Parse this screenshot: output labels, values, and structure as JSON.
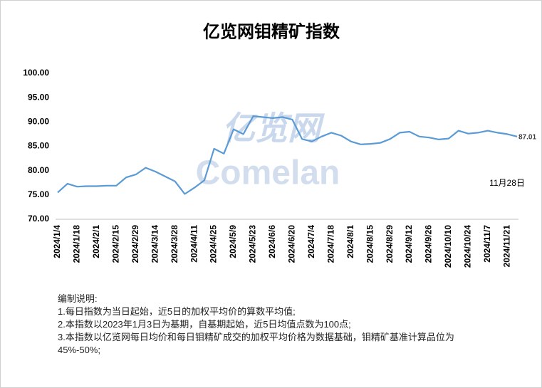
{
  "chart_data": {
    "type": "line",
    "title": "亿览网钼精矿指数",
    "categories": [
      "2024/1/4",
      null,
      "2024/1/18",
      null,
      "2024/2/1",
      null,
      "2024/2/15",
      null,
      "2024/2/29",
      null,
      "2024/3/14",
      null,
      "2024/3/28",
      null,
      "2024/4/11",
      null,
      "2024/4/25",
      null,
      "2024/5/9",
      null,
      "2024/5/23",
      null,
      "2024/6/6",
      null,
      "2024/6/20",
      null,
      "2024/7/4",
      null,
      "2024/7/18",
      null,
      "2024/8/1",
      null,
      "2024/8/15",
      null,
      "2024/8/29",
      null,
      "2024/9/12",
      null,
      "2024/9/26",
      null,
      "2024/10/10",
      null,
      "2024/10/24",
      null,
      "2024/11/7",
      null,
      "2024/11/21",
      null
    ],
    "series": [
      {
        "color": "#5b9bd5",
        "values": [
          75.5,
          77.3,
          76.7,
          76.8,
          76.8,
          76.9,
          76.9,
          78.6,
          79.2,
          80.6,
          79.8,
          78.8,
          77.8,
          75.2,
          76.5,
          78.0,
          84.5,
          83.5,
          88.5,
          87.5,
          91.2,
          91.0,
          90.8,
          91.0,
          90.5,
          86.5,
          86.0,
          87.0,
          87.8,
          87.2,
          86.0,
          85.4,
          85.5,
          85.7,
          86.5,
          87.8,
          88.0,
          87.0,
          86.8,
          86.4,
          86.6,
          88.2,
          87.6,
          87.8,
          88.2,
          87.8,
          87.5,
          87.01
        ]
      }
    ],
    "ylim": [
      70,
      100
    ],
    "yticks": [
      {
        "value": 70,
        "label": "70.00"
      },
      {
        "value": 75,
        "label": "75.00"
      },
      {
        "value": 80,
        "label": "80.00"
      },
      {
        "value": 85,
        "label": "85.00"
      },
      {
        "value": 90,
        "label": "90.00"
      },
      {
        "value": 95,
        "label": "95.00"
      },
      {
        "value": 100,
        "label": "100.00"
      }
    ],
    "annotation": "11月28日",
    "watermark": [
      "亿览网",
      "Comelan"
    ],
    "grid": false
  },
  "notes": {
    "title": "编制说明:",
    "lines": [
      "1.每日指数为当日起始，近5日的加权平均价的算数平均值;",
      "2.本指数以2023年1月3日为基期，自基期起始，近5日均值点数为100点;",
      "3.本指数以亿览网每日均价和每日钼精矿成交的加权平均价格为数据基础，钼精矿基准计算品位为45%-50%;"
    ]
  }
}
